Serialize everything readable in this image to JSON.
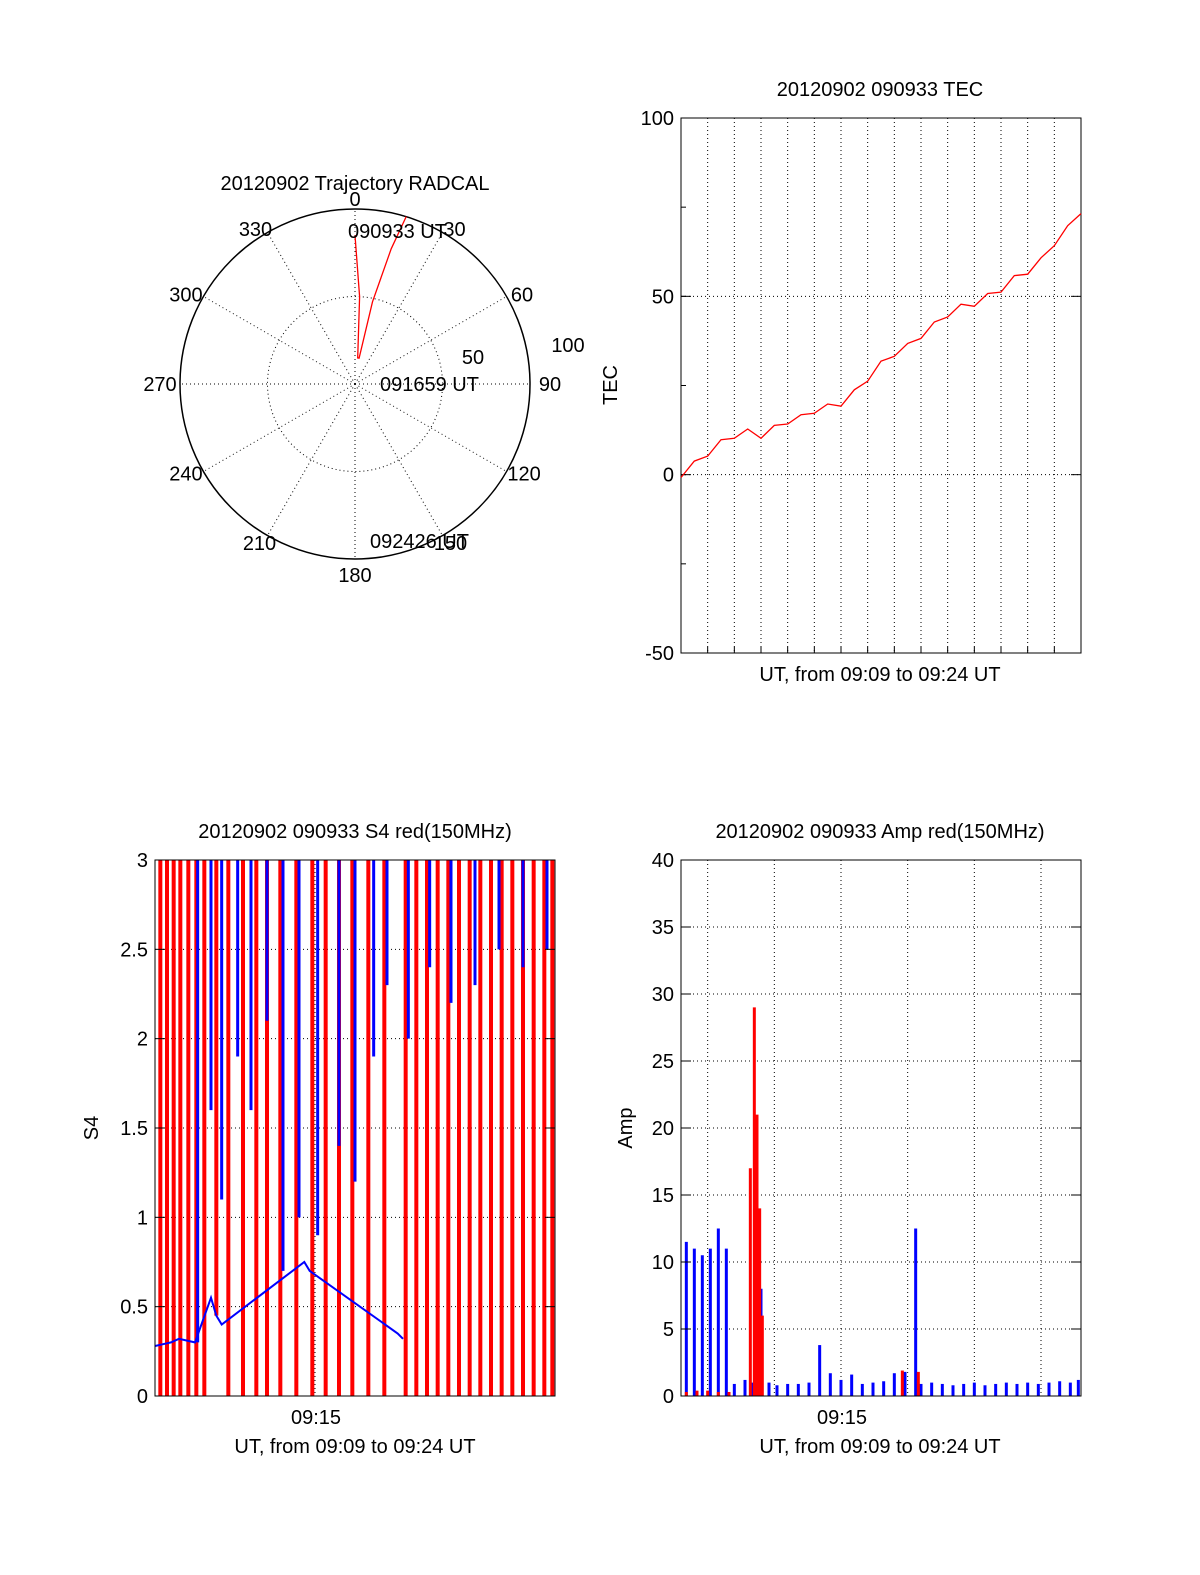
{
  "colors": {
    "red": "#ff0000",
    "blue": "#0000ff",
    "axis": "#000000",
    "background": "#ffffff"
  },
  "chart_data": [
    {
      "type": "polar",
      "title": "20120902 Trajectory RADCAL",
      "angle_labels": [
        "0",
        "30",
        "60",
        "90",
        "120",
        "150",
        "180",
        "210",
        "240",
        "270",
        "300",
        "330"
      ],
      "radial_labels": [
        "50",
        "100"
      ],
      "rlim": [
        0,
        100
      ],
      "trajectory": {
        "azimuth_deg": [
          0,
          3,
          6,
          9,
          12,
          15,
          17
        ],
        "radius": [
          85,
          50,
          15,
          15,
          48,
          80,
          100
        ],
        "color": "red"
      },
      "annotations": [
        "090933 UT",
        "091659 UT",
        "092426 UT"
      ]
    },
    {
      "type": "line",
      "title": "20120902 090933 TEC",
      "xlabel": "UT, from 09:09 to 09:24 UT",
      "ylabel": "TEC",
      "ylim": [
        -50,
        100
      ],
      "yticks": [
        "-50",
        "0",
        "50",
        "100"
      ],
      "xlim_minutes": [
        0,
        15
      ],
      "series": [
        {
          "color": "red",
          "x_minutes": [
            0,
            0.5,
            1,
            1.5,
            2,
            2.5,
            3,
            3.5,
            4,
            4.5,
            5,
            5.5,
            6,
            6.5,
            7,
            7.5,
            8,
            8.5,
            9,
            9.5,
            10,
            10.5,
            11,
            11.5,
            12,
            12.5,
            13,
            13.5,
            14,
            14.5,
            15
          ],
          "y": [
            0,
            3,
            6,
            9,
            11,
            12,
            11,
            13,
            15,
            16,
            18,
            19,
            20,
            23,
            27,
            31,
            34,
            36,
            39,
            42,
            45,
            47,
            48,
            50,
            52,
            55,
            57,
            60,
            65,
            69,
            74
          ]
        }
      ]
    },
    {
      "type": "bar",
      "title": "20120902 090933 S4 red(150MHz)",
      "xlabel": "UT, from 09:09 to 09:24 UT",
      "ylabel": "S4",
      "ylim": [
        0,
        3
      ],
      "yticks": [
        "0",
        "0.5",
        "1",
        "1.5",
        "2",
        "2.5",
        "3"
      ],
      "xticks": [
        "09:15"
      ],
      "xlim_minutes": [
        0,
        15
      ],
      "series": [
        {
          "name": "",
          "color": "red",
          "segments": [
            {
              "x": 0.2,
              "y0": 0,
              "y1": 3
            },
            {
              "x": 0.45,
              "y0": 0,
              "y1": 3
            },
            {
              "x": 0.7,
              "y0": 0,
              "y1": 3
            },
            {
              "x": 0.95,
              "y0": 0,
              "y1": 3
            },
            {
              "x": 1.25,
              "y0": 0,
              "y1": 3
            },
            {
              "x": 1.55,
              "y0": 0,
              "y1": 3
            },
            {
              "x": 1.85,
              "y0": 0,
              "y1": 3
            },
            {
              "x": 2.3,
              "y0": 0.45,
              "y1": 3
            },
            {
              "x": 2.75,
              "y0": 0,
              "y1": 3
            },
            {
              "x": 3.3,
              "y0": 0,
              "y1": 3
            },
            {
              "x": 3.8,
              "y0": 0,
              "y1": 3
            },
            {
              "x": 4.2,
              "y0": 0,
              "y1": 3
            },
            {
              "x": 4.7,
              "y0": 0,
              "y1": 3
            },
            {
              "x": 5.3,
              "y0": 0,
              "y1": 3
            },
            {
              "x": 5.9,
              "y0": 0,
              "y1": 3
            },
            {
              "x": 6.4,
              "y0": 0,
              "y1": 3
            },
            {
              "x": 6.9,
              "y0": 0,
              "y1": 3
            },
            {
              "x": 7.4,
              "y0": 0,
              "y1": 3
            },
            {
              "x": 8,
              "y0": 0,
              "y1": 3
            },
            {
              "x": 8.6,
              "y0": 0,
              "y1": 3
            },
            {
              "x": 9.4,
              "y0": 0,
              "y1": 3
            },
            {
              "x": 9.8,
              "y0": 0,
              "y1": 3
            },
            {
              "x": 10.2,
              "y0": 0,
              "y1": 3
            },
            {
              "x": 10.6,
              "y0": 0,
              "y1": 3
            },
            {
              "x": 11,
              "y0": 0,
              "y1": 3
            },
            {
              "x": 11.4,
              "y0": 0,
              "y1": 3
            },
            {
              "x": 11.8,
              "y0": 0,
              "y1": 3
            },
            {
              "x": 12.2,
              "y0": 0,
              "y1": 3
            },
            {
              "x": 12.6,
              "y0": 0,
              "y1": 3
            },
            {
              "x": 13,
              "y0": 0,
              "y1": 3
            },
            {
              "x": 13.4,
              "y0": 0,
              "y1": 3
            },
            {
              "x": 13.8,
              "y0": 0,
              "y1": 3
            },
            {
              "x": 14.2,
              "y0": 0,
              "y1": 3
            },
            {
              "x": 14.6,
              "y0": 0,
              "y1": 3
            },
            {
              "x": 14.9,
              "y0": 0,
              "y1": 3
            }
          ]
        },
        {
          "name": "",
          "color": "blue",
          "segments": [
            {
              "x": 1.6,
              "y0": 0.3,
              "y1": 3
            },
            {
              "x": 2.1,
              "y0": 1.6,
              "y1": 3
            },
            {
              "x": 2.5,
              "y0": 1.1,
              "y1": 3
            },
            {
              "x": 3.1,
              "y0": 1.9,
              "y1": 3
            },
            {
              "x": 3.6,
              "y0": 1.6,
              "y1": 3
            },
            {
              "x": 4.2,
              "y0": 2.1,
              "y1": 3
            },
            {
              "x": 4.8,
              "y0": 0.7,
              "y1": 3
            },
            {
              "x": 5.4,
              "y0": 1.0,
              "y1": 3
            },
            {
              "x": 6.1,
              "y0": 0.9,
              "y1": 3
            },
            {
              "x": 6.9,
              "y0": 1.4,
              "y1": 3
            },
            {
              "x": 7.5,
              "y0": 1.2,
              "y1": 3
            },
            {
              "x": 8.2,
              "y0": 1.9,
              "y1": 3
            },
            {
              "x": 8.7,
              "y0": 2.3,
              "y1": 3
            },
            {
              "x": 9.5,
              "y0": 2.0,
              "y1": 3
            },
            {
              "x": 10.3,
              "y0": 2.4,
              "y1": 3
            },
            {
              "x": 11.1,
              "y0": 2.2,
              "y1": 3
            },
            {
              "x": 12.0,
              "y0": 2.3,
              "y1": 3
            },
            {
              "x": 12.9,
              "y0": 2.5,
              "y1": 3
            },
            {
              "x": 13.8,
              "y0": 2.4,
              "y1": 3
            },
            {
              "x": 14.7,
              "y0": 2.5,
              "y1": 3
            }
          ],
          "trace_x_minutes": [
            0,
            0.3,
            0.6,
            0.9,
            1.2,
            1.5,
            2.1,
            2.3,
            2.5,
            5.6,
            5.8,
            9.1,
            9.3
          ],
          "trace_y": [
            0.28,
            0.29,
            0.3,
            0.32,
            0.31,
            0.3,
            0.55,
            0.45,
            0.4,
            0.75,
            0.7,
            0.35,
            0.32
          ]
        }
      ]
    },
    {
      "type": "bar",
      "title": "20120902 090933 Amp red(150MHz)",
      "xlabel": "UT, from 09:09 to 09:24 UT",
      "ylabel": "Amp",
      "ylim": [
        0,
        40
      ],
      "yticks": [
        "0",
        "5",
        "10",
        "15",
        "20",
        "25",
        "30",
        "35",
        "40"
      ],
      "xticks": [
        "09:15"
      ],
      "xlim_minutes": [
        0,
        15
      ],
      "series": [
        {
          "name": "",
          "color": "blue",
          "x_minutes": [
            0.2,
            0.5,
            0.8,
            1.1,
            1.4,
            1.7,
            2.0,
            2.4,
            2.7,
            3.0,
            3.3,
            3.6,
            4.0,
            4.4,
            4.8,
            5.2,
            5.6,
            6.0,
            6.4,
            6.8,
            7.2,
            7.6,
            8.0,
            8.4,
            8.8,
            9.0,
            9.4,
            9.8,
            10.2,
            10.6,
            11.0,
            11.4,
            11.8,
            12.2,
            12.6,
            13.0,
            13.4,
            13.8,
            14.2,
            14.6,
            14.9
          ],
          "y": [
            11.5,
            11,
            10.5,
            11,
            12.5,
            11,
            0.9,
            1.2,
            1.0,
            8.0,
            1.0,
            0.8,
            0.9,
            0.9,
            1.0,
            3.8,
            1.7,
            1.2,
            1.6,
            0.9,
            1.0,
            1.1,
            1.7,
            1.8,
            12.5,
            0.9,
            1.0,
            0.9,
            0.8,
            0.9,
            1.0,
            0.8,
            0.9,
            1.0,
            0.9,
            1.0,
            0.9,
            1.0,
            1.1,
            1.0,
            1.2
          ]
        },
        {
          "name": "",
          "color": "red",
          "x_minutes": [
            0.2,
            0.6,
            1.0,
            1.4,
            1.8,
            2.6,
            2.75,
            2.85,
            2.95,
            3.05,
            8.3,
            8.9
          ],
          "y": [
            0.3,
            0.4,
            0.4,
            0.3,
            0.3,
            17,
            29,
            21,
            14,
            6,
            1.9,
            1.8
          ]
        }
      ]
    }
  ]
}
